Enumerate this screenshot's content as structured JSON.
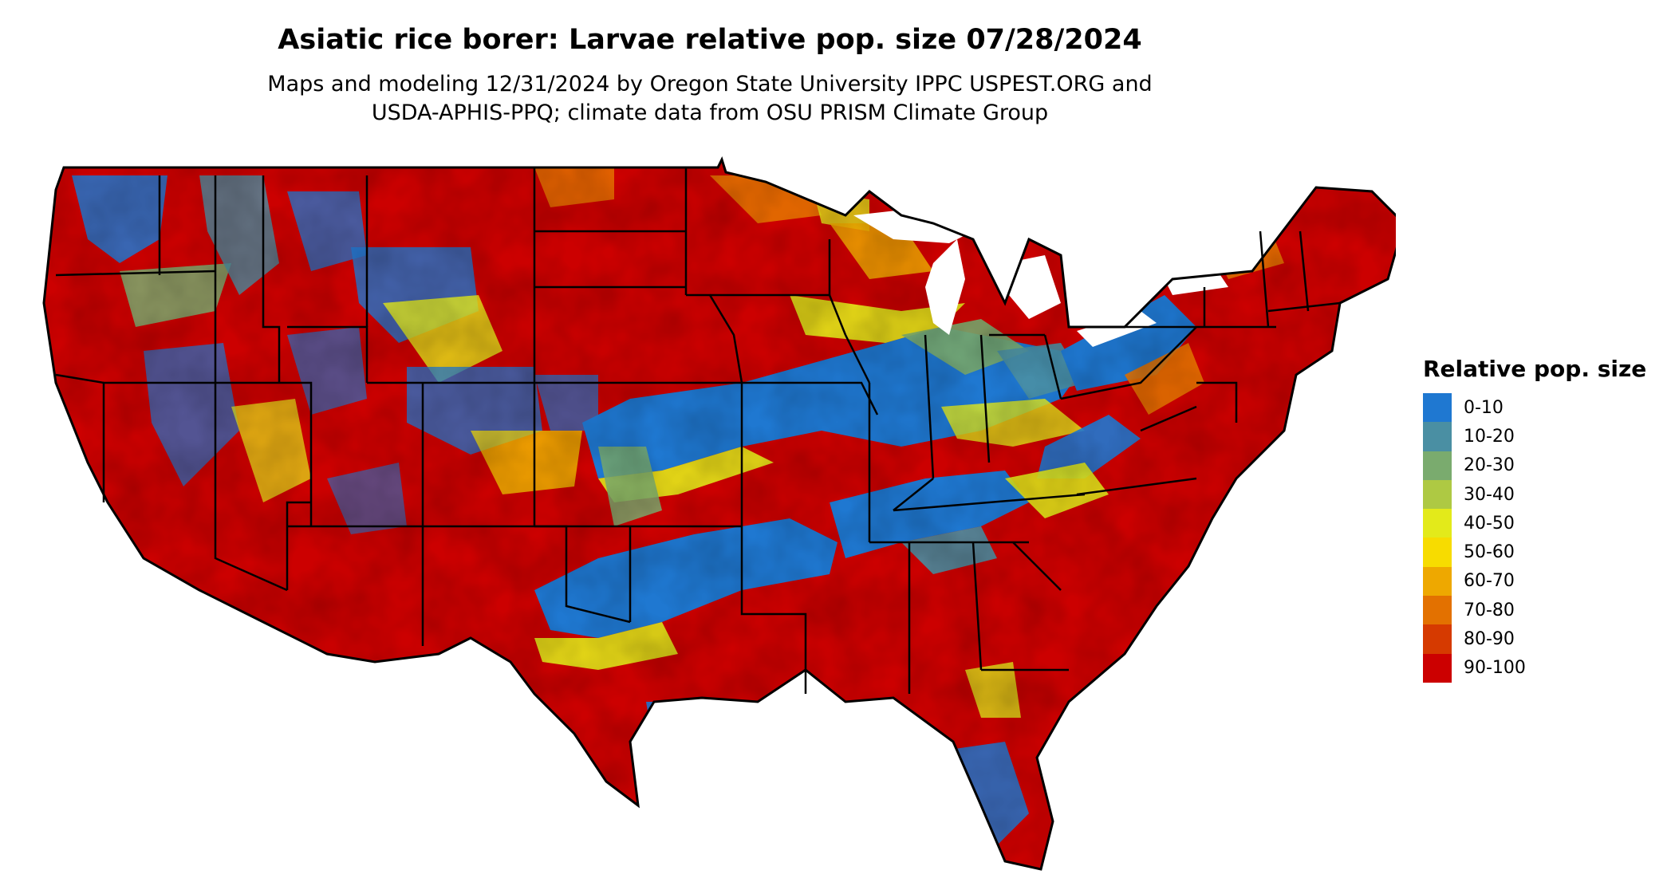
{
  "title": "Asiatic rice borer: Larvae relative pop. size 07/28/2024",
  "subtitle_line1": "Maps and modeling 12/31/2024 by Oregon State University IPPC USPEST.ORG and",
  "subtitle_line2": "USDA-APHIS-PPQ; climate data from OSU PRISM Climate Group",
  "legend": {
    "title": "Relative pop. size",
    "items": [
      {
        "label": "0-10",
        "color": "#1f78d1"
      },
      {
        "label": "10-20",
        "color": "#4a8fa3"
      },
      {
        "label": "20-30",
        "color": "#7aab6e"
      },
      {
        "label": "30-40",
        "color": "#aec943"
      },
      {
        "label": "40-50",
        "color": "#e3ea1a"
      },
      {
        "label": "50-60",
        "color": "#f7dc00"
      },
      {
        "label": "60-70",
        "color": "#eea800"
      },
      {
        "label": "70-80",
        "color": "#e37100"
      },
      {
        "label": "80-90",
        "color": "#d63a00"
      },
      {
        "label": "90-100",
        "color": "#cc0000"
      }
    ]
  }
}
